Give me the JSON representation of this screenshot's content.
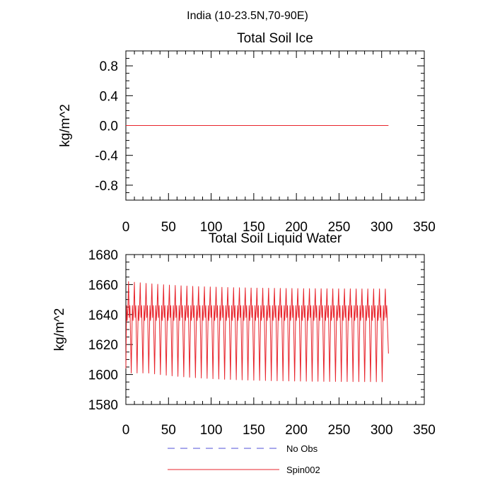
{
  "figure": {
    "title": "India (10-23.5N,70-90E)"
  },
  "legend": {
    "items": [
      {
        "label": "No Obs",
        "color": "#5050d8",
        "style": "dashed"
      },
      {
        "label": "Spin002",
        "color": "#e8242c",
        "style": "solid"
      }
    ]
  },
  "chart_data": [
    {
      "type": "line",
      "title": "Total Soil Ice",
      "xlabel": "",
      "ylabel": "kg/m^2",
      "xlim": [
        0,
        350
      ],
      "ylim": [
        -1.0,
        1.0
      ],
      "xticks": [
        0,
        50,
        100,
        150,
        200,
        250,
        300,
        350
      ],
      "yticks": [
        -0.8,
        -0.4,
        0.0,
        0.4,
        0.8
      ],
      "ytick_labels": [
        "-0.8",
        "-0.4",
        "0.0",
        "0.4",
        "0.8"
      ],
      "grid": false,
      "series": [
        {
          "name": "Spin002",
          "color": "#e8242c",
          "x": [
            0,
            308
          ],
          "y": [
            0.0,
            0.0
          ]
        }
      ]
    },
    {
      "type": "line",
      "title": "Total Soil Liquid Water",
      "xlabel": "",
      "ylabel": "kg/m^2",
      "xlim": [
        0,
        350
      ],
      "ylim": [
        1580,
        1680
      ],
      "xticks": [
        0,
        50,
        100,
        150,
        200,
        250,
        300,
        350
      ],
      "yticks": [
        1580,
        1600,
        1620,
        1640,
        1660,
        1680
      ],
      "ytick_labels": [
        "1580",
        "1600",
        "1620",
        "1640",
        "1660",
        "1680"
      ],
      "grid": false,
      "series": [
        {
          "name": "Spin002",
          "color": "#e8242c",
          "pattern": "seasonal oscillation, period ~6.8 months",
          "x_start": 0,
          "x_end": 308,
          "cycles": 45,
          "start_value": 1604,
          "end_value": 1614,
          "peak_first": 1662,
          "peak_late": 1657,
          "trough_first": 1601,
          "trough_late": 1595,
          "mid_plateau": 1636,
          "shoulder": 1646
        }
      ]
    }
  ]
}
